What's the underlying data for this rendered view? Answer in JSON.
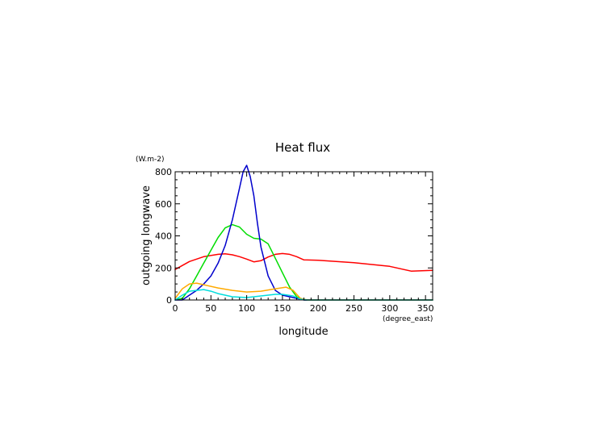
{
  "chart_data": {
    "type": "line",
    "title": "Heat flux",
    "xlabel": "longitude",
    "ylabel": "outgoing longwave",
    "x_unit": "(degree_east)",
    "y_unit": "(W.m-2)",
    "xlim": [
      0,
      360
    ],
    "ylim": [
      0,
      800
    ],
    "x_ticks": [
      0,
      50,
      100,
      150,
      200,
      250,
      300,
      350
    ],
    "y_ticks": [
      0,
      200,
      400,
      600,
      800
    ],
    "grid": false,
    "series": [
      {
        "color": "#ff0000",
        "x": [
          0,
          20,
          40,
          60,
          70,
          80,
          90,
          100,
          110,
          120,
          130,
          140,
          150,
          160,
          170,
          180,
          200,
          250,
          300,
          330,
          360
        ],
        "y": [
          190,
          240,
          270,
          285,
          288,
          282,
          270,
          255,
          238,
          245,
          268,
          285,
          290,
          285,
          270,
          250,
          248,
          233,
          210,
          180,
          185
        ]
      },
      {
        "color": "#00dd00",
        "x": [
          0,
          10,
          20,
          30,
          40,
          50,
          60,
          70,
          80,
          90,
          100,
          110,
          120,
          130,
          140,
          150,
          160,
          170,
          180,
          190,
          360
        ],
        "y": [
          0,
          10,
          70,
          150,
          230,
          310,
          390,
          450,
          470,
          455,
          410,
          385,
          380,
          350,
          260,
          170,
          80,
          20,
          0,
          0,
          0
        ]
      },
      {
        "color": "#0000cc",
        "x": [
          0,
          10,
          20,
          30,
          40,
          50,
          60,
          70,
          80,
          90,
          95,
          100,
          105,
          110,
          115,
          120,
          130,
          140,
          150,
          160,
          170,
          180,
          360
        ],
        "y": [
          0,
          0,
          30,
          60,
          100,
          150,
          230,
          340,
          500,
          700,
          800,
          840,
          770,
          650,
          480,
          330,
          150,
          60,
          30,
          20,
          10,
          0,
          0
        ]
      },
      {
        "color": "#ffaa00",
        "x": [
          0,
          10,
          20,
          30,
          40,
          60,
          80,
          100,
          120,
          140,
          155,
          165,
          175,
          185,
          200,
          360
        ],
        "y": [
          10,
          70,
          100,
          105,
          95,
          75,
          60,
          50,
          55,
          70,
          80,
          60,
          10,
          0,
          0,
          0
        ]
      },
      {
        "color": "#00dddd",
        "x": [
          0,
          10,
          20,
          30,
          40,
          50,
          60,
          80,
          100,
          120,
          140,
          150,
          165,
          175,
          185,
          360
        ],
        "y": [
          0,
          30,
          55,
          60,
          65,
          55,
          40,
          20,
          15,
          25,
          35,
          35,
          25,
          5,
          0,
          0
        ]
      }
    ]
  }
}
